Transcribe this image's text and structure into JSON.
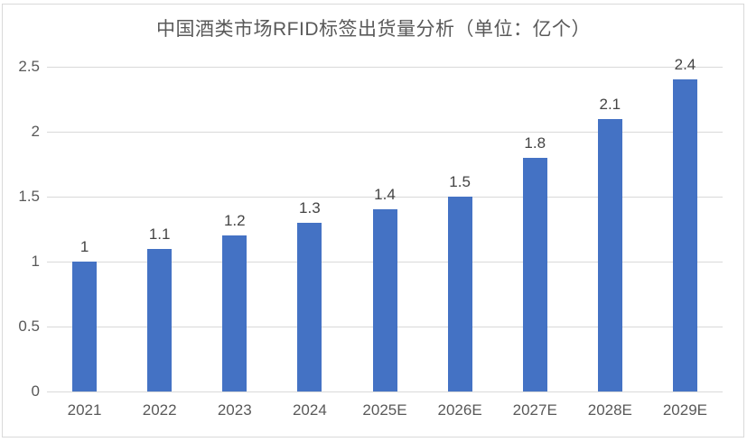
{
  "chart_data": {
    "type": "bar",
    "title": "中国酒类市场RFID标签出货量分析（单位：亿个）",
    "categories": [
      "2021",
      "2022",
      "2023",
      "2024",
      "2025E",
      "2026E",
      "2027E",
      "2028E",
      "2029E"
    ],
    "values": [
      1,
      1.1,
      1.2,
      1.3,
      1.4,
      1.5,
      1.8,
      2.1,
      2.4
    ],
    "xlabel": "",
    "ylabel": "",
    "ylim": [
      0,
      2.5
    ],
    "yticks": [
      0,
      0.5,
      1,
      1.5,
      2,
      2.5
    ],
    "grid": true,
    "legend": false,
    "data_labels_shown": true,
    "colors": {
      "bar": "#4472C4",
      "gridline": "#D9D9D9",
      "axis_text": "#595959",
      "data_label_text": "#444444",
      "title_text": "#595959",
      "border": "#D9D9D9",
      "background": "#FFFFFF"
    }
  }
}
